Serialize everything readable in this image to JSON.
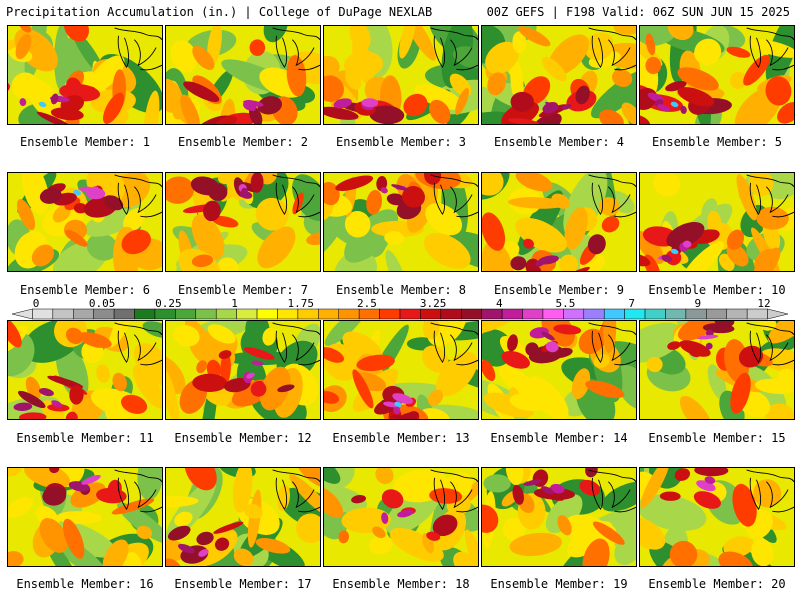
{
  "header": {
    "left": "Precipitation Accumulation (in.) | College of DuPage NEXLAB",
    "right": "00Z GEFS | F198 Valid: 06Z SUN JUN 15 2025"
  },
  "panels": [
    {
      "label": "Ensemble Member: 1",
      "wetness": 0.65,
      "hotspot": "southwest"
    },
    {
      "label": "Ensemble Member: 2",
      "wetness": 0.55,
      "hotspot": "south"
    },
    {
      "label": "Ensemble Member: 3",
      "wetness": 0.5,
      "hotspot": "southwest"
    },
    {
      "label": "Ensemble Member: 4",
      "wetness": 0.55,
      "hotspot": "south"
    },
    {
      "label": "Ensemble Member: 5",
      "wetness": 0.72,
      "hotspot": "southwest"
    },
    {
      "label": "Ensemble Member: 6",
      "wetness": 0.62,
      "hotspot": "north"
    },
    {
      "label": "Ensemble Member: 7",
      "wetness": 0.55,
      "hotspot": "north"
    },
    {
      "label": "Ensemble Member: 8",
      "wetness": 0.52,
      "hotspot": "north"
    },
    {
      "label": "Ensemble Member: 9",
      "wetness": 0.48,
      "hotspot": "south"
    },
    {
      "label": "Ensemble Member: 10",
      "wetness": 0.7,
      "hotspot": "southwest"
    },
    {
      "label": "Ensemble Member: 11",
      "wetness": 0.6,
      "hotspot": "southwest"
    },
    {
      "label": "Ensemble Member: 12",
      "wetness": 0.58,
      "hotspot": "center"
    },
    {
      "label": "Ensemble Member: 13",
      "wetness": 0.68,
      "hotspot": "south"
    },
    {
      "label": "Ensemble Member: 14",
      "wetness": 0.6,
      "hotspot": "north"
    },
    {
      "label": "Ensemble Member: 15",
      "wetness": 0.5,
      "hotspot": "north"
    },
    {
      "label": "Ensemble Member: 16",
      "wetness": 0.48,
      "hotspot": "north"
    },
    {
      "label": "Ensemble Member: 17",
      "wetness": 0.42,
      "hotspot": "southwest"
    },
    {
      "label": "Ensemble Member: 18",
      "wetness": 0.4,
      "hotspot": "center"
    },
    {
      "label": "Ensemble Member: 19",
      "wetness": 0.5,
      "hotspot": "north"
    },
    {
      "label": "Ensemble Member: 20",
      "wetness": 0.36,
      "hotspot": "north"
    }
  ],
  "colorbar": {
    "tick_labels": [
      "0",
      "0.05",
      "0.25",
      "1",
      "1.75",
      "2.5",
      "3.25",
      "4",
      "5.5",
      "7",
      "9",
      "12"
    ],
    "colors": [
      "#e0e0e0",
      "#c4c4c4",
      "#a8a8a8",
      "#8c8c8c",
      "#707070",
      "#1e7a1e",
      "#2e8f2e",
      "#4ca63a",
      "#7cc24a",
      "#a8d84a",
      "#d8ec40",
      "#ffff00",
      "#ffe600",
      "#ffcc00",
      "#ffb000",
      "#ff9400",
      "#ff7000",
      "#ff3c00",
      "#e81818",
      "#cc1010",
      "#b00c1c",
      "#941028",
      "#a0146c",
      "#c01c9c",
      "#e040c8",
      "#ff5cf0",
      "#d070ff",
      "#9a80ff",
      "#40c8ff",
      "#20e8f0",
      "#40d0c8",
      "#70b8b0",
      "#8a9a98",
      "#9a9a9a",
      "#b4b4b4",
      "#cccccc"
    ]
  }
}
